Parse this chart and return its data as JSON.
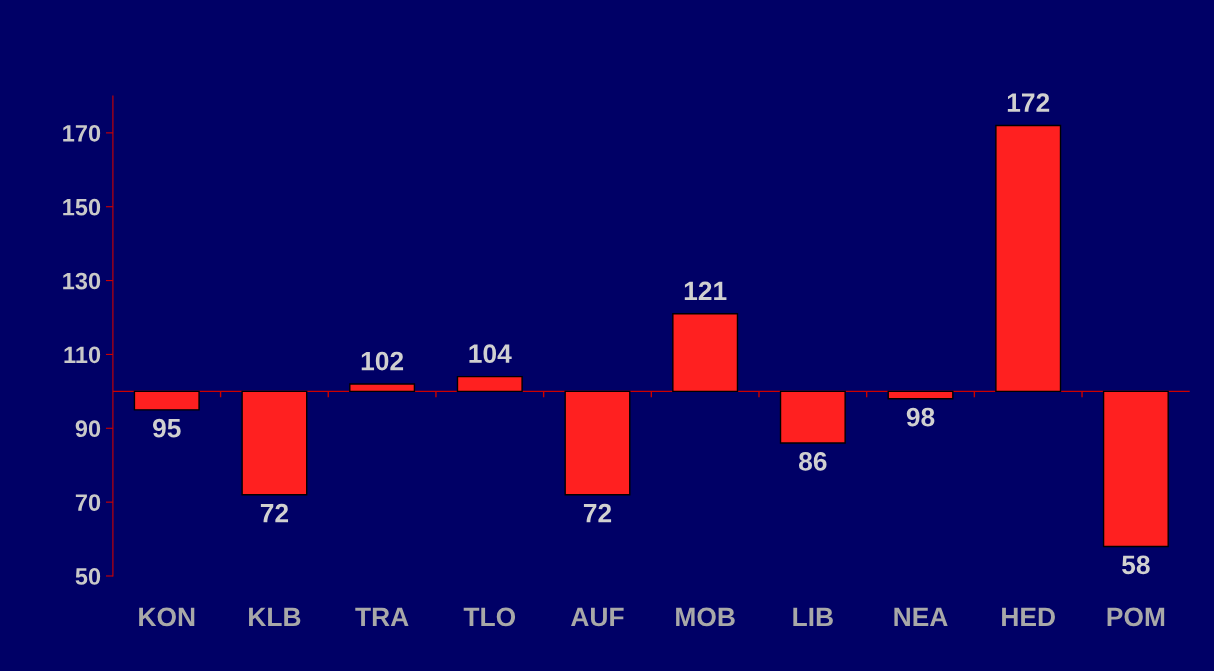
{
  "chart_data": {
    "type": "bar",
    "categories": [
      "KON",
      "KLB",
      "TRA",
      "TLO",
      "AUF",
      "MOB",
      "LIB",
      "NEA",
      "HED",
      "POM"
    ],
    "base": [
      100,
      100,
      100,
      100,
      100,
      100,
      100,
      100,
      100,
      100
    ],
    "values": [
      -5,
      -28,
      2,
      4,
      -28,
      21,
      -14,
      -2,
      72,
      -42
    ],
    "value_labels": [
      "95",
      "72",
      "102",
      "104",
      "72",
      "121",
      "86",
      "98",
      "172",
      "58"
    ],
    "color": "#ff2020",
    "ylim": [
      50,
      180
    ],
    "yticks": [
      50,
      70,
      90,
      110,
      130,
      150,
      170
    ],
    "ref_lines": [
      {
        "axis": "y",
        "value": 100,
        "color": "#cc0000"
      }
    ],
    "grid": false,
    "legend": false
  }
}
